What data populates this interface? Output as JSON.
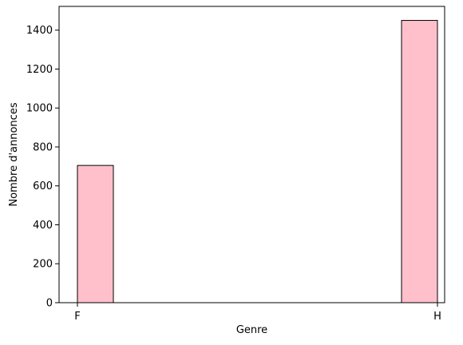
{
  "chart_data": {
    "type": "bar",
    "title": "",
    "xlabel": "Genre",
    "ylabel": "Nombre d'annonces",
    "categories": [
      "F",
      "H"
    ],
    "values": [
      705,
      1450
    ],
    "ylim": [
      0,
      1522
    ],
    "yticks": [
      0,
      200,
      400,
      600,
      800,
      1000,
      1200,
      1400
    ],
    "grid": false,
    "legend": "none",
    "bar_color": "#ffc0cb",
    "edge_color": "#000000"
  }
}
